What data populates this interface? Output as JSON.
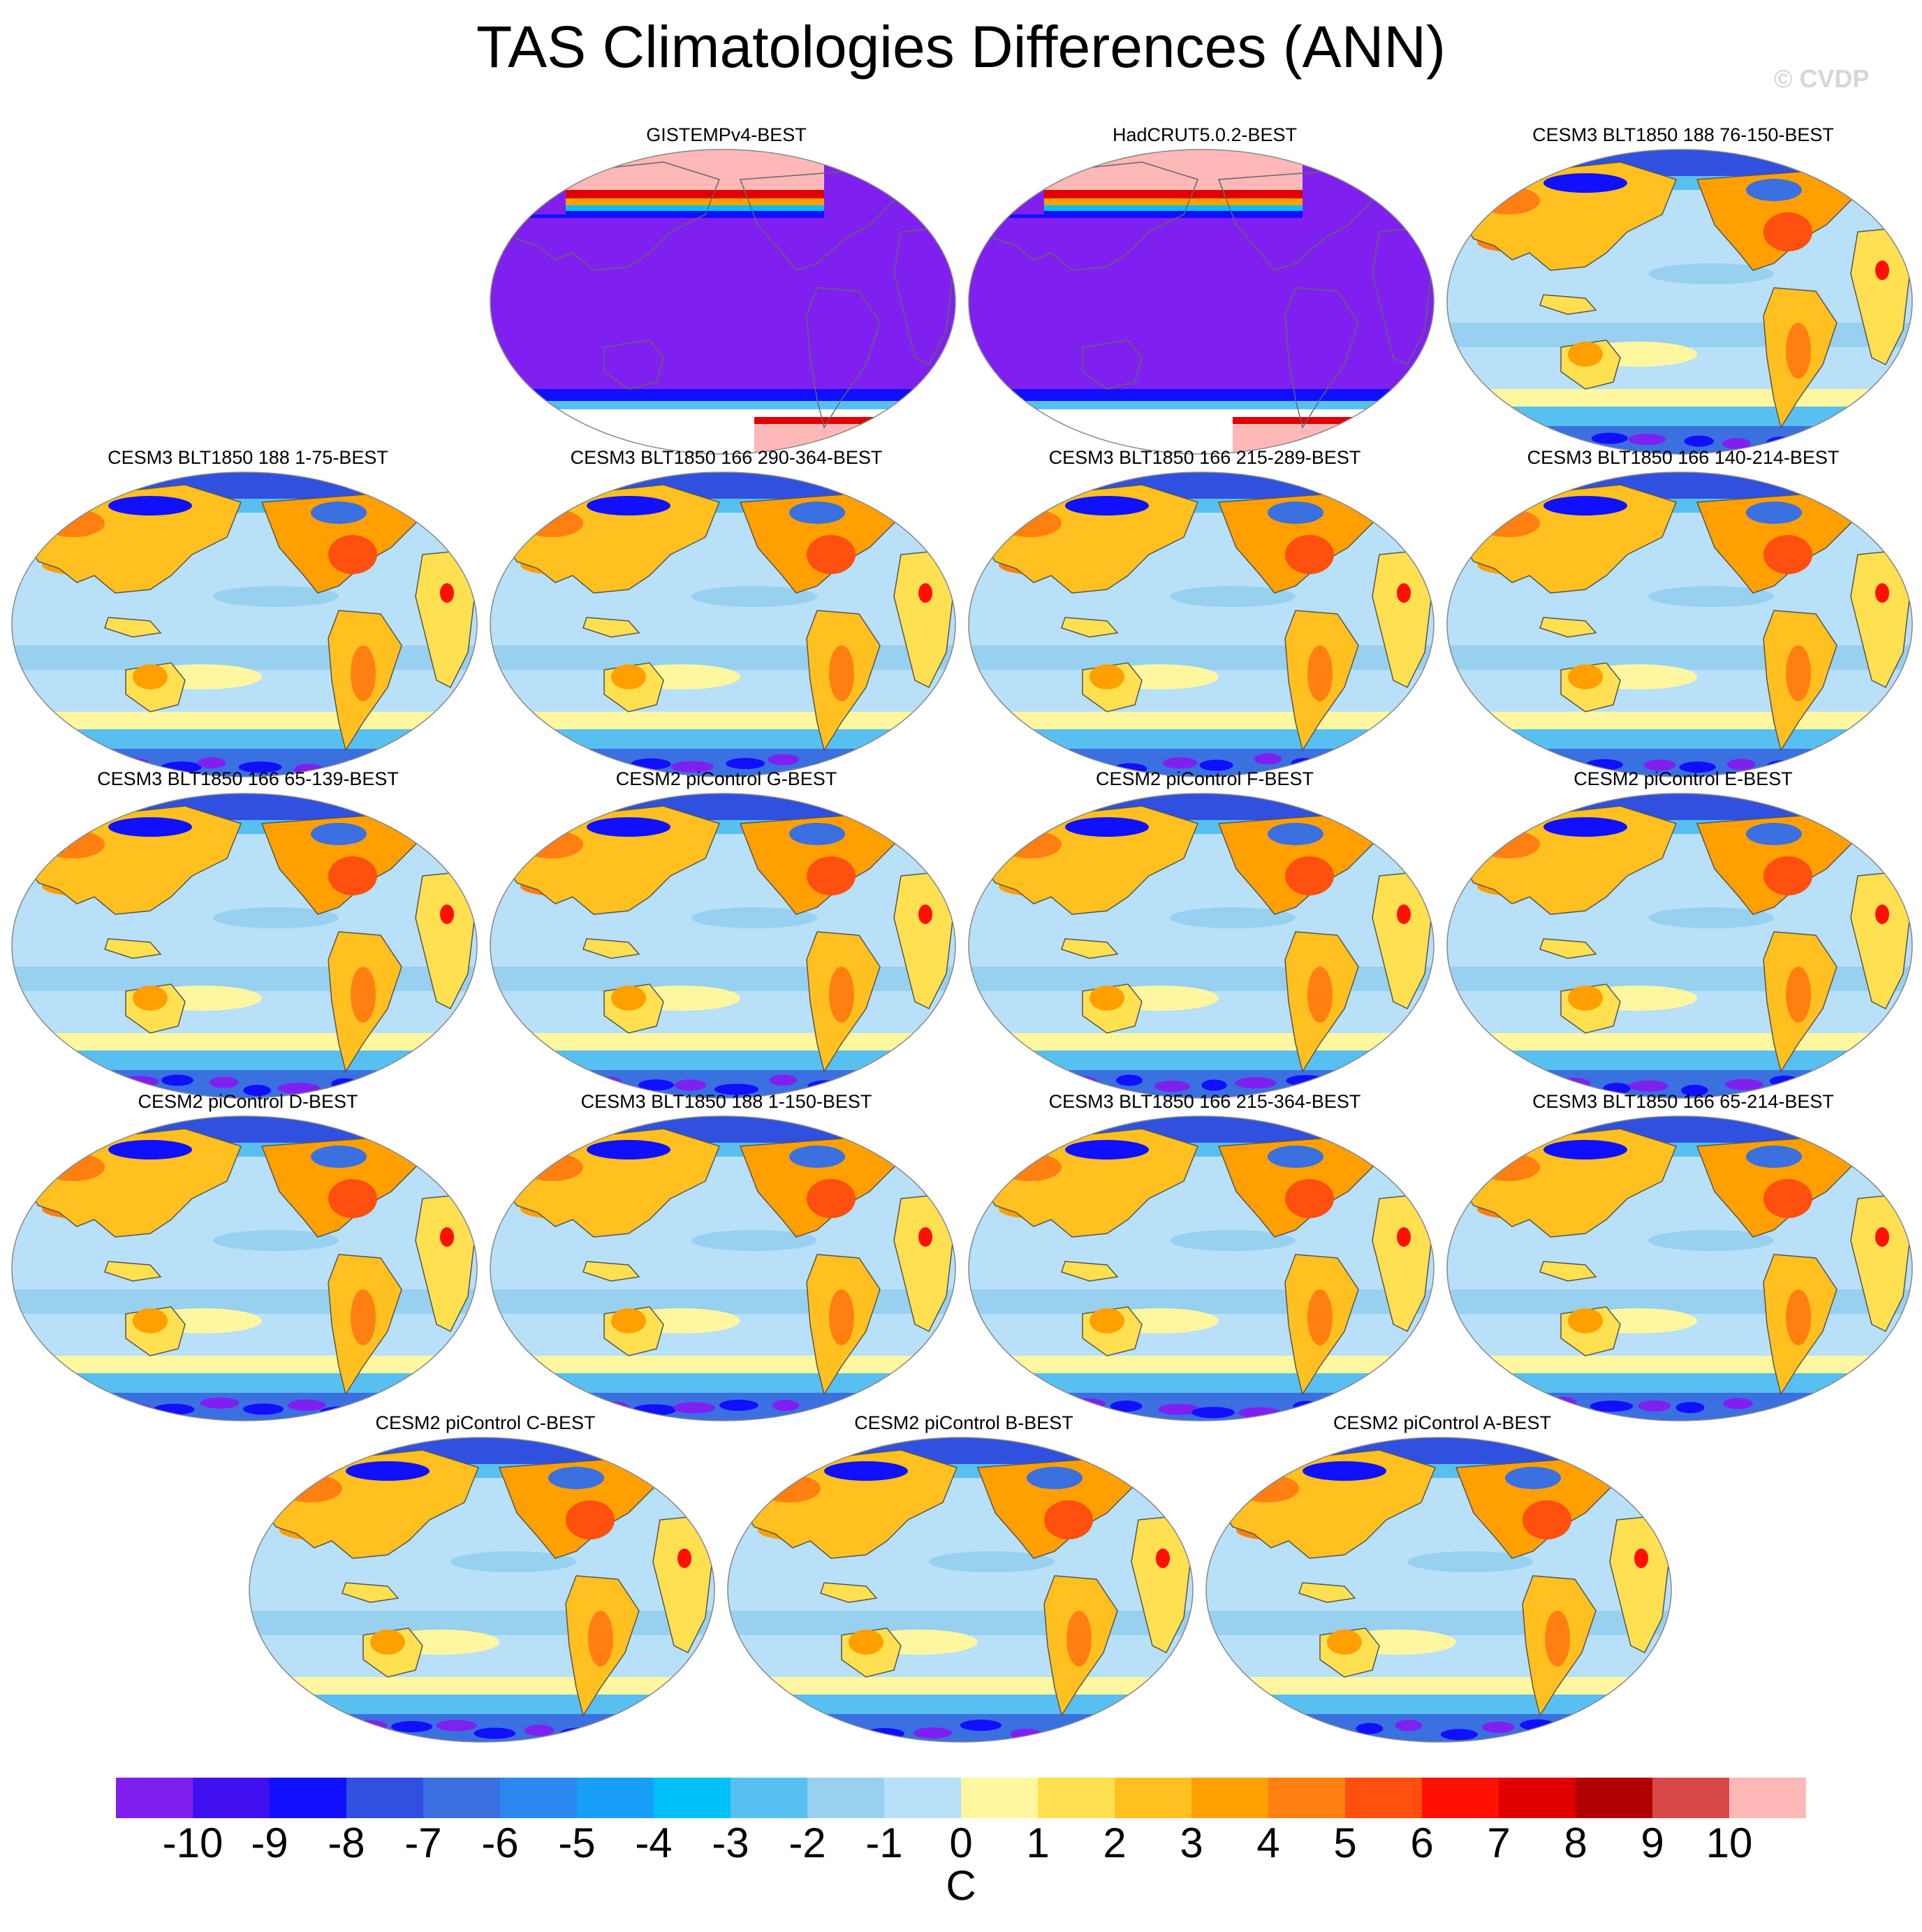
{
  "figure": {
    "title": "TAS Climatologies Differences (ANN)",
    "copyright": "© CVDP"
  },
  "panels": [
    {
      "title": "GISTEMPv4-BEST",
      "style": "obs"
    },
    {
      "title": "HadCRUT5.0.2-BEST",
      "style": "obs"
    },
    {
      "title": "CESM3 BLT1850 188 76-150-BEST",
      "style": "model"
    },
    {
      "title": "CESM3 BLT1850 188 1-75-BEST",
      "style": "model"
    },
    {
      "title": "CESM3 BLT1850 166 290-364-BEST",
      "style": "model"
    },
    {
      "title": "CESM3 BLT1850 166 215-289-BEST",
      "style": "model"
    },
    {
      "title": "CESM3 BLT1850 166 140-214-BEST",
      "style": "model"
    },
    {
      "title": "CESM3 BLT1850 166 65-139-BEST",
      "style": "model"
    },
    {
      "title": "CESM2 piControl G-BEST",
      "style": "model"
    },
    {
      "title": "CESM2 piControl F-BEST",
      "style": "model"
    },
    {
      "title": "CESM2 piControl E-BEST",
      "style": "model"
    },
    {
      "title": "CESM2 piControl D-BEST",
      "style": "model"
    },
    {
      "title": "CESM3 BLT1850 188 1-150-BEST",
      "style": "model"
    },
    {
      "title": "CESM3 BLT1850 166 215-364-BEST",
      "style": "model"
    },
    {
      "title": "CESM3 BLT1850 166 65-214-BEST",
      "style": "model"
    },
    {
      "title": "CESM2 piControl C-BEST",
      "style": "model"
    },
    {
      "title": "CESM2 piControl B-BEST",
      "style": "model"
    },
    {
      "title": "CESM2 piControl A-BEST",
      "style": "model"
    }
  ],
  "colorbar": {
    "units": "C",
    "tick_labels": [
      "-10",
      "-9",
      "-8",
      "-7",
      "-6",
      "-5",
      "-4",
      "-3",
      "-2",
      "-1",
      "0",
      "1",
      "2",
      "3",
      "4",
      "5",
      "6",
      "7",
      "8",
      "9",
      "10"
    ],
    "colors": [
      "#8020f0",
      "#4010f0",
      "#1010ff",
      "#3050e0",
      "#3a70e0",
      "#2a88f0",
      "#18a0f8",
      "#00c0f8",
      "#58c0f0",
      "#98d0f0",
      "#b8e0f8",
      "#fff7a0",
      "#ffe050",
      "#ffc020",
      "#ffa000",
      "#ff8010",
      "#ff5010",
      "#ff1000",
      "#e00000",
      "#b00000",
      "#d84848",
      "#ffb8b8"
    ]
  }
}
